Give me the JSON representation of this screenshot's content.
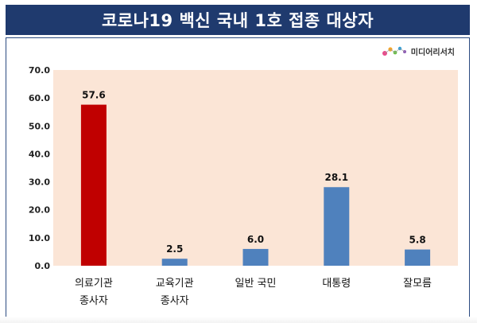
{
  "header": {
    "title": "코로나19 백신 국내 1호 접종 대상자"
  },
  "logo": {
    "text": "미디어리서치",
    "icon": "colorful-dots-logo"
  },
  "colors": {
    "banner": "#1f3a6e",
    "plot_bg": "#fbe5d6",
    "highlight_bar": "#c00000",
    "bar": "#4f81bd"
  },
  "chart_data": {
    "type": "bar",
    "categories": [
      [
        "의료기관",
        "종사자"
      ],
      [
        "교육기관",
        "종사자"
      ],
      [
        "일반 국민"
      ],
      [
        "대통령"
      ],
      [
        "잘모름"
      ]
    ],
    "values": [
      57.6,
      2.5,
      6.0,
      28.1,
      5.8
    ],
    "value_labels": [
      "57.6",
      "2.5",
      "6.0",
      "28.1",
      "5.8"
    ],
    "ylim": [
      0,
      70
    ],
    "yticks": [
      "0.0",
      "10.0",
      "20.0",
      "30.0",
      "40.0",
      "50.0",
      "60.0",
      "70.0"
    ],
    "highlight_index": 0,
    "grid": false,
    "legend": "none"
  }
}
